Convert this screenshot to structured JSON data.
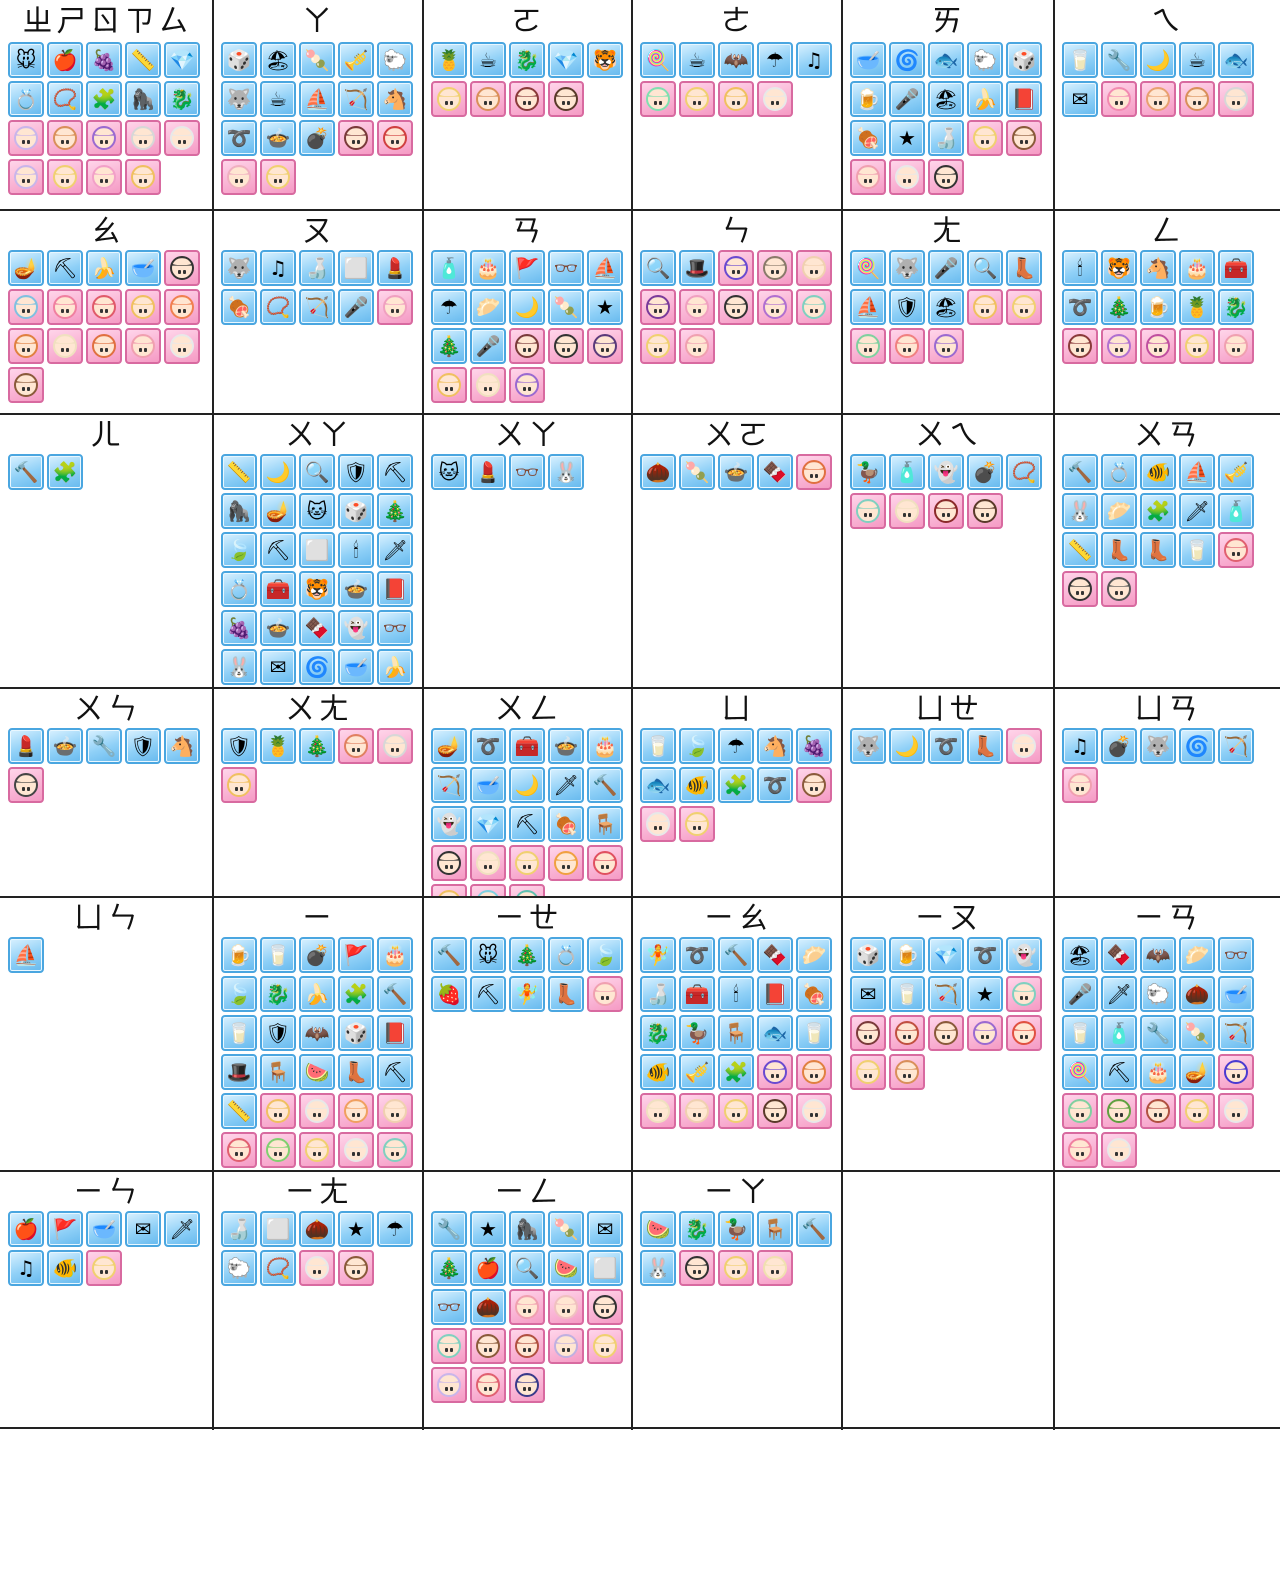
{
  "colors": {
    "line": "#222222",
    "item_frame": "#4aa6e0",
    "char_frame": "#d86aa0"
  },
  "rows": [
    [
      {
        "label": "ㄓㄕㄖㄗㄙ",
        "items": [
          "mouse-icon",
          "apple-icon",
          "grapes-icon",
          "ruler-icon",
          "gem-icon",
          "ring-icon",
          "necklace-icon",
          "puzzle-icon",
          "gorilla-icon",
          "dragon-icon"
        ],
        "chars": [
          "#c9b5ea",
          "#d98f5a",
          "#9a6ad0",
          "#d7d7d7",
          "#e8e8e8",
          "#c9b5ea",
          "#f0d070",
          "#f2a0c8",
          "#f0c060"
        ]
      },
      {
        "label": "ㄚ",
        "items": [
          "dice-icon",
          "beach-icon",
          "mochi-icon",
          "trumpet-icon",
          "sheep-icon",
          "wolf-icon",
          "coffee-icon",
          "ship-icon",
          "bow-icon",
          "horse-icon",
          "rope-icon",
          "pot-icon",
          "bomb-icon"
        ],
        "chars": [
          "#7a3a3a",
          "#d04040",
          "#f0b0c0",
          "#f0d070"
        ]
      },
      {
        "label": "ㄛ",
        "items": [
          "pineapple-icon",
          "coffee-icon",
          "dragon-icon",
          "gem-icon",
          "tiger-icon"
        ],
        "chars": [
          "#f0d070",
          "#d98f5a",
          "#8a3a3a",
          "#5a3a2a"
        ]
      },
      {
        "label": "ㄜ",
        "items": [
          "lollipop-icon",
          "coffee-icon",
          "bat-icon",
          "umbrella-icon",
          "music-icon"
        ],
        "chars": [
          "#80e0b0",
          "#f0d070",
          "#f0c060",
          "#e8e8e8"
        ]
      },
      {
        "label": "ㄞ",
        "items": [
          "bowl-icon",
          "vortex-icon",
          "fish-icon",
          "sheep-icon",
          "dice-icon",
          "mug-icon",
          "microphone-icon",
          "beach-icon",
          "banana-icon",
          "book-icon",
          "meat-icon",
          "star-icon",
          "soy-sauce-icon"
        ],
        "chars": [
          "#f0d070",
          "#8a5a3a",
          "#f0a0b0",
          "#e8e8e8",
          "#333333"
        ]
      },
      {
        "label": "ㄟ",
        "items": [
          "milk-icon",
          "tools-icon",
          "moon-icon",
          "coffee-icon",
          "fish-icon",
          "letter-icon"
        ],
        "chars": [
          "#f28ab0",
          "#e8a070",
          "#d98f5a",
          "#d7d7d7"
        ]
      }
    ],
    [
      {
        "label": "ㄠ",
        "items": [
          "lamp-icon",
          "shovel-icon",
          "banana-icon",
          "bowl-icon"
        ],
        "chars": [
          "#333333",
          "#80c0e0",
          "#f080a0",
          "#e05a6a",
          "#f0c060",
          "#f08050",
          "#e08040",
          "#f0e0c0",
          "#e07040",
          "#f0a0b0",
          "#e8e8e8",
          "#8a5a3a"
        ]
      },
      {
        "label": "ㄡ",
        "items": [
          "wolf-icon",
          "music-icon",
          "soy-sauce-icon",
          "tofu-icon",
          "lipstick-icon",
          "meat-icon",
          "necklace-icon",
          "bow-icon",
          "microphone-icon"
        ],
        "chars": [
          "#f0a0c0"
        ]
      },
      {
        "label": "ㄢ",
        "items": [
          "tube-icon",
          "cake-icon",
          "flag-icon",
          "glasses-icon",
          "ship-icon",
          "umbrella-icon",
          "dumpling-icon",
          "moon-icon",
          "mochi-icon",
          "star-icon",
          "tree-icon",
          "microphone-icon"
        ],
        "chars": [
          "#7a3a3a",
          "#333333",
          "#5a3a7a",
          "#f0c060",
          "#f0e0c0",
          "#9a6ad0"
        ]
      },
      {
        "label": "ㄣ",
        "items": [
          "magnifier-icon",
          "hat-icon"
        ],
        "chars": [
          "#6a4ad0",
          "#8a7a6a",
          "#f0d0b0",
          "#7a3a9a",
          "#f0a0c0",
          "#333333",
          "#b070d0",
          "#80d0c0",
          "#f0d070",
          "#f0a0b0"
        ]
      },
      {
        "label": "ㄤ",
        "items": [
          "lollipop-icon",
          "wolf-icon",
          "microphone-icon",
          "magnifier-icon",
          "boot-icon",
          "ship-icon",
          "shield-icon",
          "beach-icon"
        ],
        "chars": [
          "#f0c060",
          "#f0d070",
          "#80d0a0",
          "#f08080",
          "#9a6ad0"
        ]
      },
      {
        "label": "ㄥ",
        "items": [
          "chandelier-icon",
          "tiger-icon",
          "horse-icon",
          "cake-icon",
          "chest-icon",
          "rope-icon",
          "tree-icon",
          "mug-icon",
          "pineapple-icon",
          "dragon-icon"
        ],
        "chars": [
          "#8a3a3a",
          "#b070d0",
          "#c050a0",
          "#f0d070",
          "#f0a0b0"
        ]
      }
    ],
    [
      {
        "label": "ㄦ",
        "items": [
          "hammer-icon",
          "puzzle-icon"
        ],
        "chars": []
      },
      {
        "label": "ㄨㄚ",
        "items": [
          "ruler-icon",
          "moon-icon",
          "magnifier-icon",
          "shield-icon",
          "shovel-icon",
          "gorilla-icon",
          "lamp-icon",
          "cat-icon",
          "dice-icon",
          "tree-icon",
          "leaf-icon",
          "shovel-icon",
          "tofu-icon",
          "chandelier-icon",
          "sword-icon",
          "ring-icon",
          "chest-icon",
          "tiger-icon",
          "pot-icon",
          "book-icon",
          "grapes-icon",
          "pot-icon",
          "chocolate-icon",
          "ghost-icon",
          "glasses-icon",
          "rabbit-icon",
          "letter-icon",
          "vortex-icon",
          "bowl-icon",
          "banana-icon"
        ],
        "chars": [
          "#d98f5a",
          "#b070d0",
          "#f080a0",
          "#f0e0c0",
          "#8a7a6a",
          "#d05040",
          "#e8e8e8",
          "#333333",
          "#f0c060",
          "#80c0a0"
        ]
      },
      {
        "label": "ㄨㄚ",
        "items": [
          "cat-icon",
          "lipstick-icon",
          "glasses-icon",
          "rabbit-icon"
        ],
        "chars": []
      },
      {
        "label": "ㄨㄛ",
        "items": [
          "walnut-icon",
          "mochi-icon",
          "pot-icon",
          "chocolate-icon"
        ],
        "chars": [
          "#e07040"
        ]
      },
      {
        "label": "ㄨㄟ",
        "items": [
          "duck-icon",
          "tube-icon",
          "ghost-icon",
          "bomb-icon",
          "necklace-icon"
        ],
        "chars": [
          "#80d0c0",
          "#f0e0c0",
          "#8a2a2a",
          "#5a3a2a"
        ]
      },
      {
        "label": "ㄨㄢ",
        "items": [
          "hammer-icon",
          "ring-icon",
          "goldfish-icon",
          "ship-icon",
          "trumpet-icon",
          "rabbit-icon",
          "dumpling-icon",
          "puzzle-icon",
          "sword-icon",
          "tube-icon",
          "ruler-icon",
          "boot-icon",
          "boot-icon",
          "milk-icon"
        ],
        "chars": [
          "#e06070",
          "#333333",
          "#555555"
        ]
      }
    ],
    [
      {
        "label": "ㄨㄣ",
        "items": [
          "lipstick-icon",
          "pot-icon",
          "tools-icon",
          "shield-icon",
          "horse-icon"
        ],
        "chars": [
          "#444444"
        ]
      },
      {
        "label": "ㄨㄤ",
        "items": [
          "shield-icon",
          "pineapple-icon",
          "tree-icon"
        ],
        "chars": [
          "#e08060",
          "#d7d7d7",
          "#f0c060"
        ]
      },
      {
        "label": "ㄨㄥ",
        "items": [
          "lamp-icon",
          "rope-icon",
          "chest-icon",
          "pot-icon",
          "cake-icon",
          "bow-icon",
          "bowl-icon",
          "moon-icon",
          "sword-icon",
          "hammer-icon",
          "ghost-icon",
          "gem-icon",
          "shovel-icon",
          "meat-icon",
          "chair-icon"
        ],
        "chars": [
          "#333333",
          "#f0e0c0",
          "#f0d070",
          "#f0a040",
          "#e05060",
          "#f0c060",
          "#80d0e0",
          "#60c0b0"
        ]
      },
      {
        "label": "ㄩ",
        "items": [
          "milk-icon",
          "leaf-icon",
          "umbrella-icon",
          "horse-icon",
          "grapes-icon",
          "fish-icon",
          "goldfish-icon",
          "puzzle-icon",
          "rope-icon"
        ],
        "chars": [
          "#8a5a3a",
          "#e8e8e8",
          "#f0d070"
        ]
      },
      {
        "label": "ㄩㄝ",
        "items": [
          "wolf-icon",
          "moon-icon",
          "rope-icon",
          "boot-icon"
        ],
        "chars": [
          "#e8e8e8"
        ]
      },
      {
        "label": "ㄩㄢ",
        "items": [
          "music-icon",
          "bomb-icon",
          "wolf-icon",
          "vortex-icon",
          "bow-icon"
        ],
        "chars": [
          "#f0a0b0"
        ]
      }
    ],
    [
      {
        "label": "ㄩㄣ",
        "items": [
          "ship-icon"
        ],
        "chars": []
      },
      {
        "label": "ㄧ",
        "items": [
          "mug-icon",
          "milk-icon",
          "bomb-icon",
          "flag-icon",
          "cake-icon",
          "leaf-icon",
          "dragon-icon",
          "banana-icon",
          "puzzle-icon",
          "hammer-icon",
          "milk-icon",
          "shield-icon",
          "bat-icon",
          "dice-icon",
          "book-icon",
          "hat-icon",
          "chair-icon",
          "watermelon-icon",
          "boot-icon",
          "shovel-icon",
          "ruler-icon"
        ],
        "chars": [
          "#f0c060",
          "#e8e8e8",
          "#f0a060",
          "#f0d0b0",
          "#e06070",
          "#80d070",
          "#f0d070",
          "#e8e8e8",
          "#80d0c0",
          "#e07030",
          "#6a4a8a",
          "#5a3a6a",
          "#f0a0b0",
          "#333333",
          "#e8e8e8"
        ]
      },
      {
        "label": "ㄧㄝ",
        "items": [
          "hammer-icon",
          "mouse-icon",
          "tree-icon",
          "ring-icon",
          "leaf-icon",
          "strawberry-icon",
          "shovel-icon",
          "girl-icon",
          "boot-icon"
        ],
        "chars": [
          "#f0a0b0"
        ]
      },
      {
        "label": "ㄧㄠ",
        "items": [
          "girl-icon",
          "rope-icon",
          "hammer-icon",
          "chocolate-icon",
          "dumpling-icon",
          "soy-sauce-icon",
          "chest-icon",
          "chandelier-icon",
          "book-icon",
          "meat-icon",
          "dragon-icon",
          "duck-icon",
          "chair-icon",
          "fish-icon",
          "milk-icon",
          "goldfish-icon",
          "trumpet-icon",
          "puzzle-icon"
        ],
        "chars": [
          "#6a4ad0",
          "#e08040",
          "#f0e0c0",
          "#f0d0b0",
          "#f0d070",
          "#5a3a2a",
          "#e8e8e8"
        ]
      },
      {
        "label": "ㄧㄡ",
        "items": [
          "dice-icon",
          "mug-icon",
          "gem-icon",
          "rope-icon",
          "ghost-icon",
          "letter-icon",
          "milk-icon",
          "bow-icon",
          "star-icon"
        ],
        "chars": [
          "#80d0c0",
          "#7a3a3a",
          "#c05040",
          "#8a5a3a",
          "#9a6ad0",
          "#e05040",
          "#f0d070",
          "#d98f5a"
        ]
      },
      {
        "label": "ㄧㄢ",
        "items": [
          "beach-icon",
          "chocolate-icon",
          "bat-icon",
          "dumpling-icon",
          "glasses-icon",
          "microphone-icon",
          "sword-icon",
          "sheep-icon",
          "walnut-icon",
          "bowl-icon",
          "milk-icon",
          "tube-icon",
          "tools-icon",
          "mochi-icon",
          "bow-icon",
          "lollipop-icon",
          "shovel-icon",
          "cake-icon",
          "lamp-icon"
        ],
        "chars": [
          "#4a3ad0",
          "#80d0a0",
          "#60a040",
          "#b05040",
          "#f0d070",
          "#e8e8e8",
          "#f080a0",
          "#e8e8e8"
        ]
      }
    ],
    [
      {
        "label": "ㄧㄣ",
        "items": [
          "apple-icon",
          "flag-icon",
          "bowl-icon",
          "letter-icon",
          "sword-icon",
          "music-icon",
          "goldfish-icon"
        ],
        "chars": [
          "#f0d070"
        ]
      },
      {
        "label": "ㄧㄤ",
        "items": [
          "soy-sauce-icon",
          "tofu-icon",
          "walnut-icon",
          "star-icon",
          "umbrella-icon",
          "sheep-icon",
          "necklace-icon"
        ],
        "chars": [
          "#e8e8e8",
          "#8a5a3a"
        ]
      },
      {
        "label": "ㄧㄥ",
        "items": [
          "tools-icon",
          "star-icon",
          "gorilla-icon",
          "mochi-icon",
          "letter-icon",
          "tree-icon",
          "apple-icon",
          "magnifier-icon",
          "watermelon-icon",
          "tofu-icon",
          "glasses-icon",
          "walnut-icon"
        ],
        "chars": [
          "#f0a0b0",
          "#f0c0c0",
          "#333333",
          "#80d0c0",
          "#8a5a3a",
          "#b05040",
          "#c0b0e0",
          "#f0d070",
          "#c9b5ea",
          "#e06070",
          "#3a3a8a"
        ]
      },
      {
        "label": "ㄧㄚ",
        "items": [
          "watermelon-icon",
          "dragon-icon",
          "duck-icon",
          "chair-icon",
          "hammer-icon",
          "rabbit-icon"
        ],
        "chars": [
          "#333333",
          "#f0d070",
          "#f0e0b0"
        ]
      },
      {
        "label": "",
        "items": [],
        "chars": []
      },
      {
        "label": "",
        "items": [],
        "chars": []
      }
    ]
  ]
}
